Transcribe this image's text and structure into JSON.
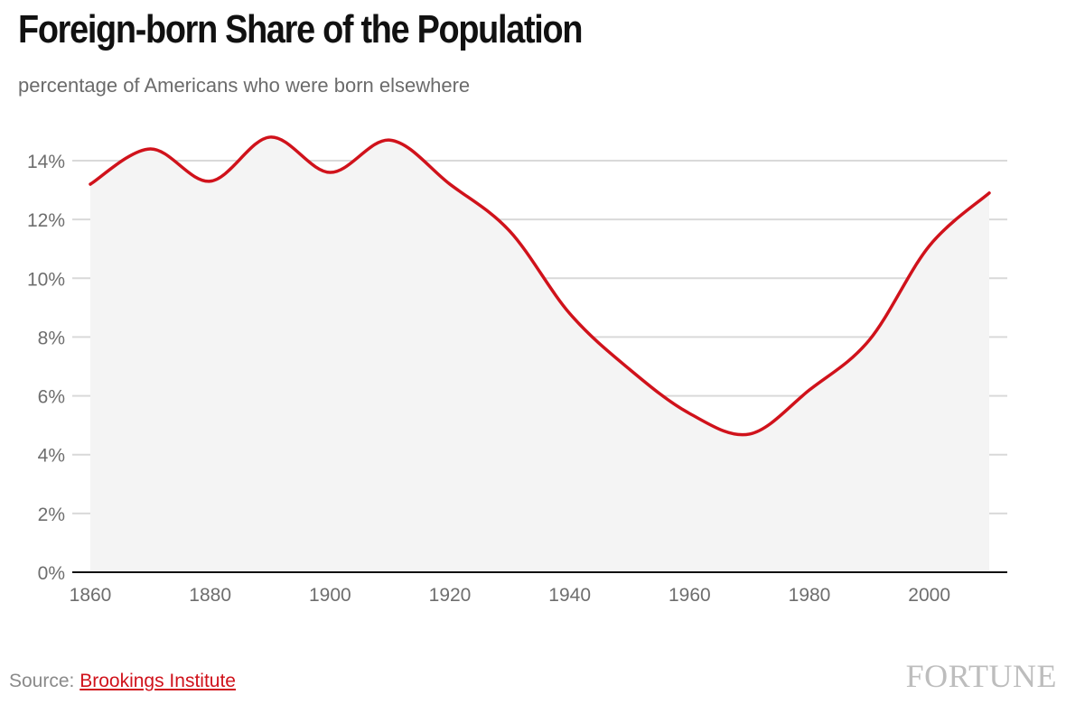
{
  "header": {
    "title": "Foreign-born Share of the Population",
    "subtitle": "percentage of Americans who were born elsewhere"
  },
  "footer": {
    "source_prefix": "Source: ",
    "source_link": "Brookings Institute",
    "brand": "FORTUNE"
  },
  "colors": {
    "line": "#d0121b",
    "area": "#f4f4f4",
    "grid": "#d9d9d9",
    "axis": "#111111"
  },
  "chart_data": {
    "type": "line",
    "title": "Foreign-born Share of the Population",
    "subtitle": "percentage of Americans who were born elsewhere",
    "xlabel": "",
    "ylabel": "",
    "x": [
      1860,
      1870,
      1880,
      1890,
      1900,
      1910,
      1920,
      1930,
      1940,
      1950,
      1960,
      1970,
      1980,
      1990,
      2000,
      2010
    ],
    "series": [
      {
        "name": "Foreign-born share (%)",
        "values": [
          13.2,
          14.4,
          13.3,
          14.8,
          13.6,
          14.7,
          13.2,
          11.6,
          8.8,
          6.9,
          5.4,
          4.7,
          6.2,
          7.9,
          11.1,
          12.9
        ]
      }
    ],
    "xlim": [
      1860,
      2010
    ],
    "ylim": [
      0,
      15
    ],
    "xticks": [
      1860,
      1880,
      1900,
      1920,
      1940,
      1960,
      1980,
      2000
    ],
    "xtick_labels": [
      "1860",
      "1880",
      "1900",
      "1920",
      "1940",
      "1960",
      "1980",
      "2000"
    ],
    "yticks": [
      0,
      2,
      4,
      6,
      8,
      10,
      12,
      14
    ],
    "ytick_labels": [
      "0%",
      "2%",
      "4%",
      "6%",
      "8%",
      "10%",
      "12%",
      "14%"
    ],
    "grid": true,
    "area_fill": true
  }
}
